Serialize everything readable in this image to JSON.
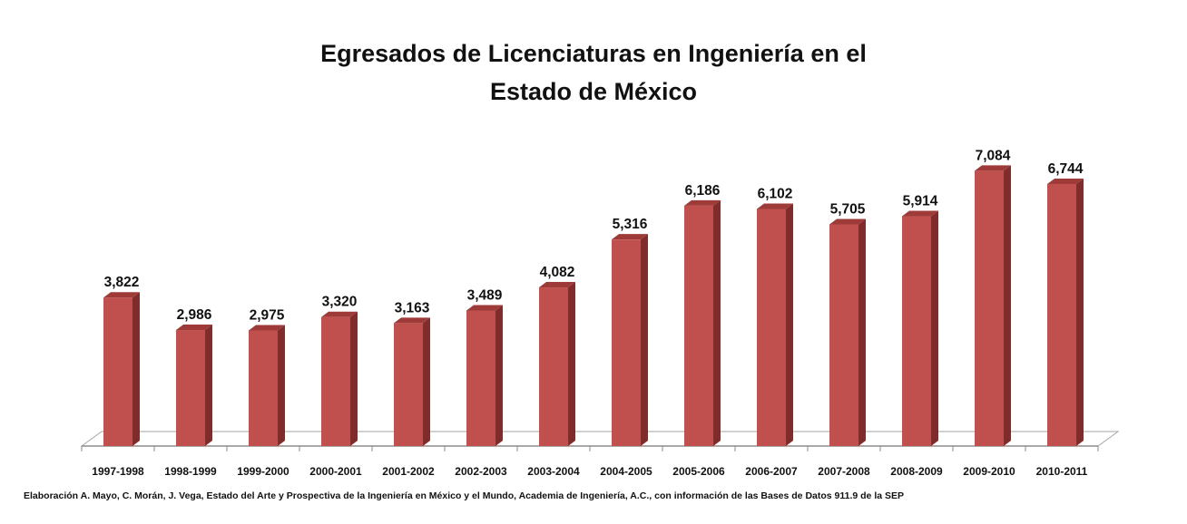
{
  "chart_data": {
    "type": "bar",
    "title_lines": [
      "Egresados de Licenciaturas en Ingeniería en el",
      "Estado de México"
    ],
    "categories": [
      "1997-1998",
      "1998-1999",
      "1999-2000",
      "2000-2001",
      "2001-2002",
      "2002-2003",
      "2003-2004",
      "2004-2005",
      "2005-2006",
      "2006-2007",
      "2007-2008",
      "2008-2009",
      "2009-2010",
      "2010-2011"
    ],
    "values": [
      3822,
      2986,
      2975,
      3320,
      3163,
      3489,
      4082,
      5316,
      6186,
      6102,
      5705,
      5914,
      7084,
      6744
    ],
    "value_labels": [
      "3,822",
      "2,986",
      "2,975",
      "3,320",
      "3,163",
      "3,489",
      "4,082",
      "5,316",
      "6,186",
      "6,102",
      "5,705",
      "5,914",
      "7,084",
      "6,744"
    ],
    "ylim": [
      0,
      7500
    ],
    "grid": false,
    "legend": "none",
    "style": "3d-column",
    "colors": {
      "bar_front": "#c0504d",
      "bar_side": "#7f2c2a",
      "bar_top": "#9e3b39",
      "floor_edge": "#a6a6a6"
    }
  },
  "source_note": "Elaboración A. Mayo, C. Morán, J. Vega, Estado del Arte y Prospectiva de la Ingeniería en México y el Mundo, Academia de Ingeniería, A.C., con información de las Bases de Datos  911.9  de la SEP"
}
